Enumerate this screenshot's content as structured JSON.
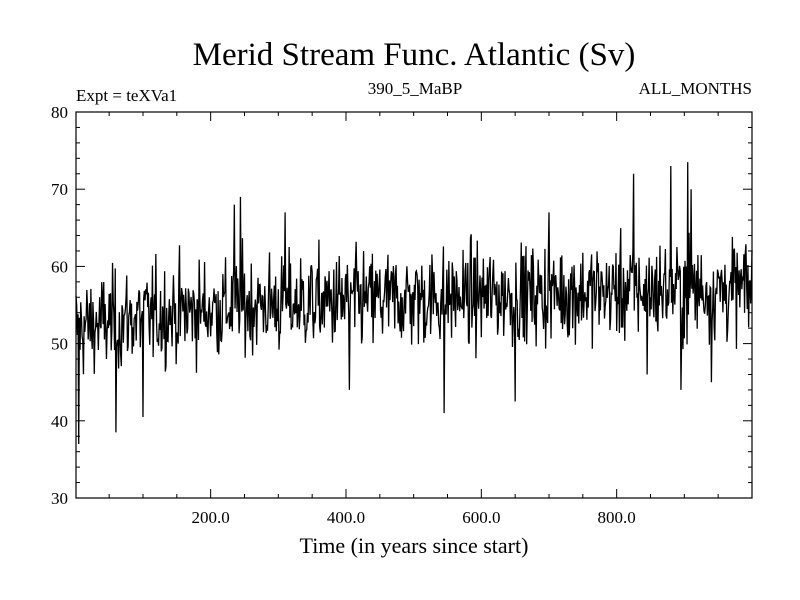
{
  "chart_data": {
    "type": "line",
    "title": "Merid Stream Func. Atlantic (Sv)",
    "subtitle_left": "Expt = teXVa1",
    "subtitle_center": "390_5_MaBP",
    "subtitle_right": "ALL_MONTHS",
    "xlabel": "Time (in years since start)",
    "ylabel": "",
    "xlim": [
      1,
      1000
    ],
    "ylim": [
      30,
      80
    ],
    "x_ticks": [
      200,
      400,
      600,
      800
    ],
    "x_tick_labels": [
      "200.0",
      "400.0",
      "600.0",
      "800.0"
    ],
    "y_ticks": [
      30,
      40,
      50,
      60,
      70,
      80
    ],
    "y_tick_labels": [
      "30",
      "40",
      "50",
      "60",
      "70",
      "80"
    ],
    "grid": false,
    "series": [
      {
        "name": "Merid Stream Func. Atlantic",
        "color": "#000000",
        "trend": {
          "x": [
            1,
            100,
            250,
            400,
            550,
            700,
            850,
            1000
          ],
          "y": [
            52,
            53.5,
            55,
            55.5,
            56,
            56.5,
            57,
            57
          ]
        },
        "spread": 3.5,
        "peaks": [
          {
            "x": 5,
            "y": 37
          },
          {
            "x": 60,
            "y": 38.5
          },
          {
            "x": 100,
            "y": 40.5
          },
          {
            "x": 235,
            "y": 68
          },
          {
            "x": 244,
            "y": 69
          },
          {
            "x": 310,
            "y": 67
          },
          {
            "x": 405,
            "y": 44
          },
          {
            "x": 545,
            "y": 41
          },
          {
            "x": 650,
            "y": 42.5
          },
          {
            "x": 700,
            "y": 67
          },
          {
            "x": 825,
            "y": 72
          },
          {
            "x": 845,
            "y": 46
          },
          {
            "x": 880,
            "y": 73
          },
          {
            "x": 895,
            "y": 44
          },
          {
            "x": 905,
            "y": 73.5
          },
          {
            "x": 910,
            "y": 70
          },
          {
            "x": 940,
            "y": 45
          }
        ]
      }
    ]
  }
}
